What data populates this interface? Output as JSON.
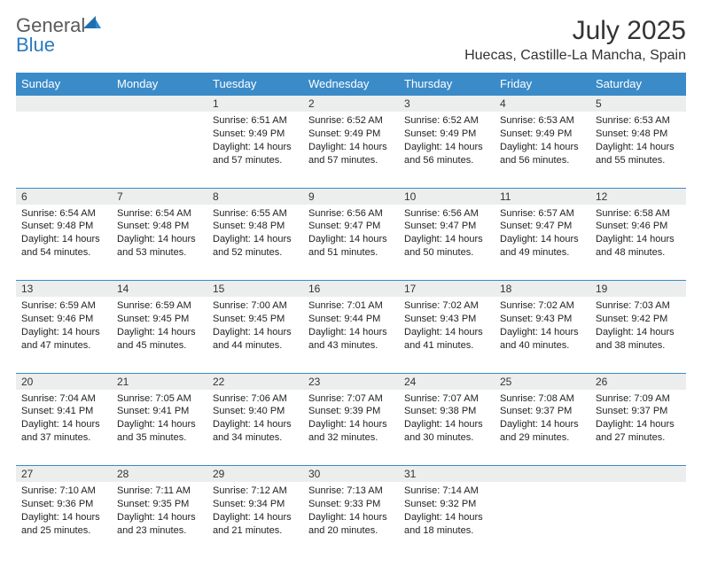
{
  "brand": {
    "name_gray": "General",
    "name_blue": "Blue"
  },
  "title": "July 2025",
  "location": "Huecas, Castille-La Mancha, Spain",
  "colors": {
    "header_bg": "#3b8bc8",
    "header_text": "#ffffff",
    "daynum_bg": "#eceded",
    "border": "#3b8bc8",
    "text": "#222222",
    "logo_gray": "#5a5a5a",
    "logo_blue": "#2b7bbf",
    "page_bg": "#ffffff"
  },
  "weekdays": [
    "Sunday",
    "Monday",
    "Tuesday",
    "Wednesday",
    "Thursday",
    "Friday",
    "Saturday"
  ],
  "weeks": [
    [
      null,
      null,
      {
        "n": "1",
        "sr": "6:51 AM",
        "ss": "9:49 PM",
        "dl": "14 hours and 57 minutes."
      },
      {
        "n": "2",
        "sr": "6:52 AM",
        "ss": "9:49 PM",
        "dl": "14 hours and 57 minutes."
      },
      {
        "n": "3",
        "sr": "6:52 AM",
        "ss": "9:49 PM",
        "dl": "14 hours and 56 minutes."
      },
      {
        "n": "4",
        "sr": "6:53 AM",
        "ss": "9:49 PM",
        "dl": "14 hours and 56 minutes."
      },
      {
        "n": "5",
        "sr": "6:53 AM",
        "ss": "9:48 PM",
        "dl": "14 hours and 55 minutes."
      }
    ],
    [
      {
        "n": "6",
        "sr": "6:54 AM",
        "ss": "9:48 PM",
        "dl": "14 hours and 54 minutes."
      },
      {
        "n": "7",
        "sr": "6:54 AM",
        "ss": "9:48 PM",
        "dl": "14 hours and 53 minutes."
      },
      {
        "n": "8",
        "sr": "6:55 AM",
        "ss": "9:48 PM",
        "dl": "14 hours and 52 minutes."
      },
      {
        "n": "9",
        "sr": "6:56 AM",
        "ss": "9:47 PM",
        "dl": "14 hours and 51 minutes."
      },
      {
        "n": "10",
        "sr": "6:56 AM",
        "ss": "9:47 PM",
        "dl": "14 hours and 50 minutes."
      },
      {
        "n": "11",
        "sr": "6:57 AM",
        "ss": "9:47 PM",
        "dl": "14 hours and 49 minutes."
      },
      {
        "n": "12",
        "sr": "6:58 AM",
        "ss": "9:46 PM",
        "dl": "14 hours and 48 minutes."
      }
    ],
    [
      {
        "n": "13",
        "sr": "6:59 AM",
        "ss": "9:46 PM",
        "dl": "14 hours and 47 minutes."
      },
      {
        "n": "14",
        "sr": "6:59 AM",
        "ss": "9:45 PM",
        "dl": "14 hours and 45 minutes."
      },
      {
        "n": "15",
        "sr": "7:00 AM",
        "ss": "9:45 PM",
        "dl": "14 hours and 44 minutes."
      },
      {
        "n": "16",
        "sr": "7:01 AM",
        "ss": "9:44 PM",
        "dl": "14 hours and 43 minutes."
      },
      {
        "n": "17",
        "sr": "7:02 AM",
        "ss": "9:43 PM",
        "dl": "14 hours and 41 minutes."
      },
      {
        "n": "18",
        "sr": "7:02 AM",
        "ss": "9:43 PM",
        "dl": "14 hours and 40 minutes."
      },
      {
        "n": "19",
        "sr": "7:03 AM",
        "ss": "9:42 PM",
        "dl": "14 hours and 38 minutes."
      }
    ],
    [
      {
        "n": "20",
        "sr": "7:04 AM",
        "ss": "9:41 PM",
        "dl": "14 hours and 37 minutes."
      },
      {
        "n": "21",
        "sr": "7:05 AM",
        "ss": "9:41 PM",
        "dl": "14 hours and 35 minutes."
      },
      {
        "n": "22",
        "sr": "7:06 AM",
        "ss": "9:40 PM",
        "dl": "14 hours and 34 minutes."
      },
      {
        "n": "23",
        "sr": "7:07 AM",
        "ss": "9:39 PM",
        "dl": "14 hours and 32 minutes."
      },
      {
        "n": "24",
        "sr": "7:07 AM",
        "ss": "9:38 PM",
        "dl": "14 hours and 30 minutes."
      },
      {
        "n": "25",
        "sr": "7:08 AM",
        "ss": "9:37 PM",
        "dl": "14 hours and 29 minutes."
      },
      {
        "n": "26",
        "sr": "7:09 AM",
        "ss": "9:37 PM",
        "dl": "14 hours and 27 minutes."
      }
    ],
    [
      {
        "n": "27",
        "sr": "7:10 AM",
        "ss": "9:36 PM",
        "dl": "14 hours and 25 minutes."
      },
      {
        "n": "28",
        "sr": "7:11 AM",
        "ss": "9:35 PM",
        "dl": "14 hours and 23 minutes."
      },
      {
        "n": "29",
        "sr": "7:12 AM",
        "ss": "9:34 PM",
        "dl": "14 hours and 21 minutes."
      },
      {
        "n": "30",
        "sr": "7:13 AM",
        "ss": "9:33 PM",
        "dl": "14 hours and 20 minutes."
      },
      {
        "n": "31",
        "sr": "7:14 AM",
        "ss": "9:32 PM",
        "dl": "14 hours and 18 minutes."
      },
      null,
      null
    ]
  ],
  "labels": {
    "sunrise": "Sunrise:",
    "sunset": "Sunset:",
    "daylight": "Daylight:"
  }
}
